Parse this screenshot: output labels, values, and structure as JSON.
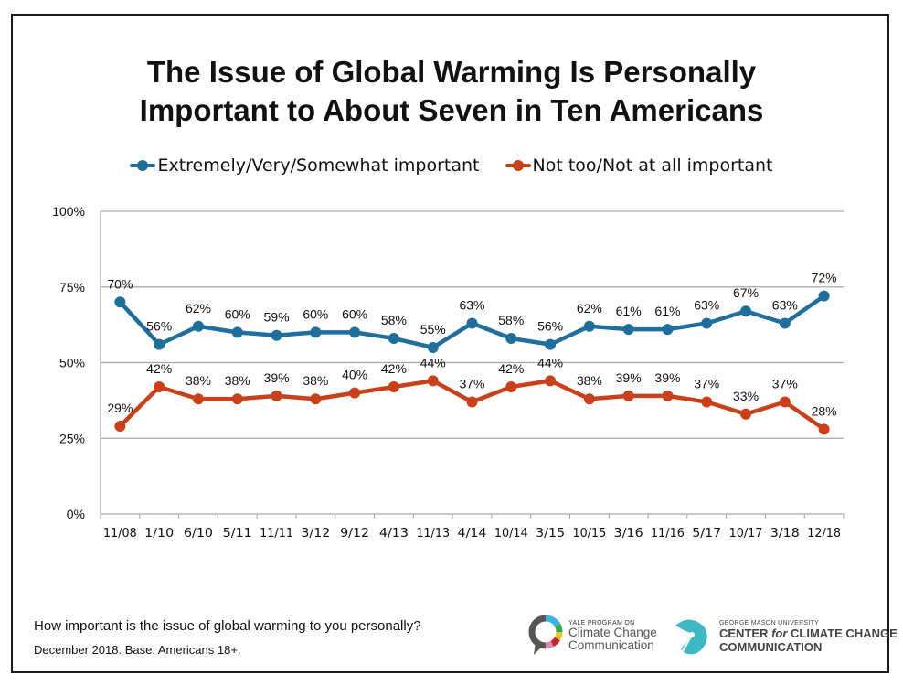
{
  "title_lines": [
    "The Issue of Global Warming Is Personally",
    "Important to About Seven in Ten Americans"
  ],
  "footer": {
    "question": "How important is the issue of global warming to you personally?",
    "note": "December 2018. Base: Americans 18+."
  },
  "logos": {
    "yale": {
      "small": "YALE PROGRAM ON",
      "line1": "Climate Change",
      "line2": "Communication",
      "icon": "speech-bubble-ring-icon"
    },
    "gmu": {
      "small": "GEORGE MASON UNIVERSITY",
      "line1_a": "CENTER ",
      "line1_b": "for",
      "line1_c": " CLIMATE CHANGE",
      "line2": "COMMUNICATION",
      "icon": "shell-sunburst-icon"
    }
  },
  "colors": {
    "series1": "#1f6e9c",
    "series2": "#c8411a",
    "grid": "#a6a6a6",
    "text": "#111111"
  },
  "chart_data": {
    "type": "line",
    "title": "The Issue of Global Warming Is Personally Important to About Seven in Ten Americans",
    "xlabel": "",
    "ylabel": "",
    "ylim": [
      0,
      100
    ],
    "yticks": [
      0,
      25,
      50,
      75,
      100
    ],
    "ytick_labels": [
      "0%",
      "25%",
      "50%",
      "75%",
      "100%"
    ],
    "grid": true,
    "legend_position": "top",
    "categories": [
      "11/08",
      "1/10",
      "6/10",
      "5/11",
      "11/11",
      "3/12",
      "9/12",
      "4/13",
      "11/13",
      "4/14",
      "10/14",
      "3/15",
      "10/15",
      "3/16",
      "11/16",
      "5/17",
      "10/17",
      "3/18",
      "12/18"
    ],
    "series": [
      {
        "name": "Extremely/Very/Somewhat important",
        "color": "#1f6e9c",
        "values": [
          70,
          56,
          62,
          60,
          59,
          60,
          60,
          58,
          55,
          63,
          58,
          56,
          62,
          61,
          61,
          63,
          67,
          63,
          72
        ]
      },
      {
        "name": "Not too/Not at all important",
        "color": "#c8411a",
        "values": [
          29,
          42,
          38,
          38,
          39,
          38,
          40,
          42,
          44,
          37,
          42,
          44,
          38,
          39,
          39,
          37,
          33,
          37,
          28
        ]
      }
    ]
  }
}
